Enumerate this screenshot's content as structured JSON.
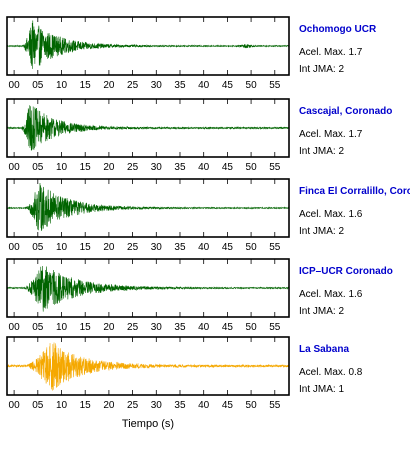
{
  "chart_data": {
    "type": "line",
    "x_axis": {
      "label": "Tiempo (s)",
      "range": [
        -1.5,
        58
      ],
      "tick_values": [
        0,
        5,
        10,
        15,
        20,
        25,
        30,
        35,
        40,
        45,
        50,
        55
      ],
      "tick_labels": [
        "00",
        "05",
        "10",
        "15",
        "20",
        "25",
        "30",
        "35",
        "40",
        "45",
        "50",
        "55"
      ]
    },
    "y_range": [
      -1,
      1
    ],
    "grid": false,
    "panels": [
      {
        "station": "Ochomogo UCR",
        "accel_text": "Acel. Max. 1.7",
        "jma_text": "Int JMA: 2",
        "line_color": "#006400",
        "label_color": "#0000cc",
        "onset_s": 1.8,
        "peak_s": 3.8,
        "peak_amplitude": 0.95,
        "decay_s": 5.5,
        "noise_amplitude": 0.02,
        "late_burst_s": 49.0
      },
      {
        "station": "Cascajal, Coronado",
        "accel_text": "Acel. Max. 1.7",
        "jma_text": "Int JMA: 2",
        "line_color": "#006400",
        "label_color": "#0000cc",
        "onset_s": 1.5,
        "peak_s": 3.3,
        "peak_amplitude": 0.95,
        "decay_s": 5.0,
        "noise_amplitude": 0.03,
        "late_burst_s": null
      },
      {
        "station": "Finca El Corralillo, Coronado",
        "accel_text": "Acel. Max. 1.6",
        "jma_text": "Int JMA: 2",
        "line_color": "#006400",
        "label_color": "#0000cc",
        "onset_s": 2.5,
        "peak_s": 5.2,
        "peak_amplitude": 0.95,
        "decay_s": 6.0,
        "noise_amplitude": 0.02,
        "late_burst_s": null
      },
      {
        "station": "ICP–UCR Coronado",
        "accel_text": "Acel. Max. 1.6",
        "jma_text": "Int JMA: 2",
        "line_color": "#006400",
        "label_color": "#0000cc",
        "onset_s": 2.0,
        "peak_s": 6.0,
        "peak_amplitude": 0.9,
        "decay_s": 7.0,
        "noise_amplitude": 0.02,
        "late_burst_s": null
      },
      {
        "station": "La Sabana",
        "accel_text": "Acel. Max. 0.8",
        "jma_text": "Int JMA: 1",
        "line_color": "#f5a800",
        "label_color": "#0000cc",
        "onset_s": 2.5,
        "peak_s": 8.0,
        "peak_amplitude": 0.95,
        "decay_s": 6.0,
        "noise_amplitude": 0.04,
        "late_burst_s": null
      }
    ]
  }
}
